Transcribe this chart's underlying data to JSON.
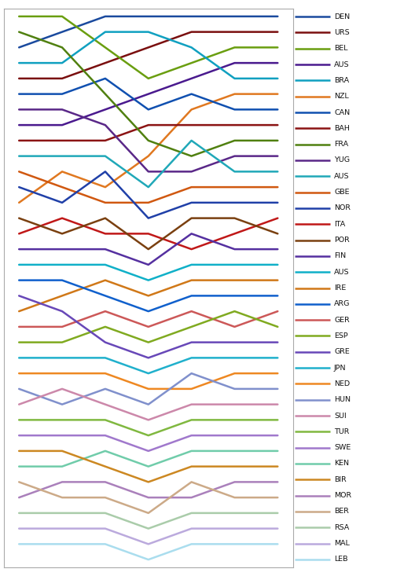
{
  "races": [
    1,
    2,
    3,
    4,
    5,
    6,
    7
  ],
  "figsize": [
    5.0,
    7.33
  ],
  "dpi": 100,
  "ylim_min": 0.5,
  "ylim_max": 36.5,
  "entries": [
    {
      "label": "DEN",
      "color": "#1a4a9e",
      "lw": 1.8,
      "positions": [
        3,
        2,
        1,
        1,
        1,
        1,
        1
      ]
    },
    {
      "label": "URS",
      "color": "#7a0f0f",
      "lw": 1.8,
      "positions": [
        5,
        5,
        4,
        3,
        2,
        2,
        2
      ]
    },
    {
      "label": "BEL",
      "color": "#6a9e10",
      "lw": 1.8,
      "positions": [
        1,
        1,
        3,
        5,
        4,
        3,
        3
      ]
    },
    {
      "label": "AUS",
      "color": "#4a1a8e",
      "lw": 1.8,
      "positions": [
        8,
        8,
        7,
        6,
        5,
        4,
        4
      ]
    },
    {
      "label": "BRA",
      "color": "#10a0c0",
      "lw": 1.8,
      "positions": [
        4,
        4,
        2,
        2,
        3,
        5,
        5
      ]
    },
    {
      "label": "NZL",
      "color": "#e07820",
      "lw": 1.8,
      "positions": [
        13,
        11,
        12,
        10,
        7,
        6,
        6
      ]
    },
    {
      "label": "CAN",
      "color": "#1050b0",
      "lw": 1.8,
      "positions": [
        6,
        6,
        5,
        7,
        6,
        7,
        7
      ]
    },
    {
      "label": "BAH",
      "color": "#8b1414",
      "lw": 1.8,
      "positions": [
        9,
        9,
        9,
        8,
        8,
        8,
        8
      ]
    },
    {
      "label": "FRA",
      "color": "#508010",
      "lw": 1.8,
      "positions": [
        2,
        3,
        6,
        9,
        10,
        9,
        9
      ]
    },
    {
      "label": "YUG",
      "color": "#5a2888",
      "lw": 1.8,
      "positions": [
        7,
        7,
        8,
        11,
        11,
        10,
        10
      ]
    },
    {
      "label": "AUS",
      "color": "#20a8b8",
      "lw": 1.8,
      "positions": [
        10,
        10,
        10,
        12,
        9,
        11,
        11
      ]
    },
    {
      "label": "GBE",
      "color": "#d05810",
      "lw": 1.8,
      "positions": [
        11,
        12,
        13,
        13,
        12,
        12,
        12
      ]
    },
    {
      "label": "NOR",
      "color": "#2040a8",
      "lw": 1.8,
      "positions": [
        12,
        13,
        11,
        14,
        13,
        13,
        13
      ]
    },
    {
      "label": "ITA",
      "color": "#c01818",
      "lw": 1.8,
      "positions": [
        15,
        14,
        15,
        15,
        16,
        15,
        14
      ]
    },
    {
      "label": "POR",
      "color": "#7a4010",
      "lw": 1.8,
      "positions": [
        14,
        15,
        14,
        16,
        14,
        14,
        15
      ]
    },
    {
      "label": "FIN",
      "color": "#5530a0",
      "lw": 1.8,
      "positions": [
        16,
        16,
        16,
        17,
        15,
        16,
        16
      ]
    },
    {
      "label": "AUS",
      "color": "#10b0c8",
      "lw": 1.8,
      "positions": [
        17,
        17,
        17,
        18,
        17,
        17,
        17
      ]
    },
    {
      "label": "IRE",
      "color": "#d07818",
      "lw": 1.8,
      "positions": [
        20,
        19,
        18,
        19,
        18,
        18,
        18
      ]
    },
    {
      "label": "ARG",
      "color": "#1060cc",
      "lw": 1.8,
      "positions": [
        18,
        18,
        19,
        20,
        19,
        19,
        19
      ]
    },
    {
      "label": "GER",
      "color": "#cc5858",
      "lw": 1.8,
      "positions": [
        21,
        21,
        20,
        21,
        20,
        21,
        20
      ]
    },
    {
      "label": "ESP",
      "color": "#80aa20",
      "lw": 1.8,
      "positions": [
        22,
        22,
        21,
        22,
        21,
        20,
        21
      ]
    },
    {
      "label": "GRE",
      "color": "#6848b8",
      "lw": 1.8,
      "positions": [
        19,
        20,
        22,
        23,
        22,
        22,
        22
      ]
    },
    {
      "label": "JPN",
      "color": "#20b0cc",
      "lw": 1.8,
      "positions": [
        23,
        23,
        23,
        24,
        23,
        23,
        23
      ]
    },
    {
      "label": "NED",
      "color": "#ee8822",
      "lw": 1.8,
      "positions": [
        24,
        24,
        24,
        25,
        25,
        24,
        24
      ]
    },
    {
      "label": "HUN",
      "color": "#8090cc",
      "lw": 1.8,
      "positions": [
        25,
        26,
        25,
        26,
        24,
        25,
        25
      ]
    },
    {
      "label": "SUI",
      "color": "#cc88aa",
      "lw": 1.8,
      "positions": [
        26,
        25,
        26,
        27,
        26,
        26,
        26
      ]
    },
    {
      "label": "TUR",
      "color": "#80b840",
      "lw": 1.8,
      "positions": [
        27,
        27,
        27,
        28,
        27,
        27,
        27
      ]
    },
    {
      "label": "SWE",
      "color": "#a078cc",
      "lw": 1.8,
      "positions": [
        28,
        28,
        28,
        29,
        28,
        28,
        28
      ]
    },
    {
      "label": "KEN",
      "color": "#70ccaa",
      "lw": 1.8,
      "positions": [
        30,
        30,
        29,
        30,
        29,
        29,
        29
      ]
    },
    {
      "label": "BIR",
      "color": "#cc8822",
      "lw": 1.8,
      "positions": [
        29,
        29,
        30,
        31,
        30,
        30,
        30
      ]
    },
    {
      "label": "MOR",
      "color": "#aa80bb",
      "lw": 1.8,
      "positions": [
        32,
        31,
        31,
        32,
        32,
        31,
        31
      ]
    },
    {
      "label": "BER",
      "color": "#ccaa88",
      "lw": 1.8,
      "positions": [
        31,
        32,
        32,
        33,
        31,
        32,
        32
      ]
    },
    {
      "label": "RSA",
      "color": "#aaccaa",
      "lw": 1.8,
      "positions": [
        33,
        33,
        33,
        34,
        33,
        33,
        33
      ]
    },
    {
      "label": "MAL",
      "color": "#bbaadd",
      "lw": 1.8,
      "positions": [
        34,
        34,
        34,
        35,
        34,
        34,
        34
      ]
    },
    {
      "label": "LEB",
      "color": "#aaddee",
      "lw": 1.8,
      "positions": [
        35,
        35,
        35,
        36,
        35,
        35,
        35
      ]
    }
  ]
}
